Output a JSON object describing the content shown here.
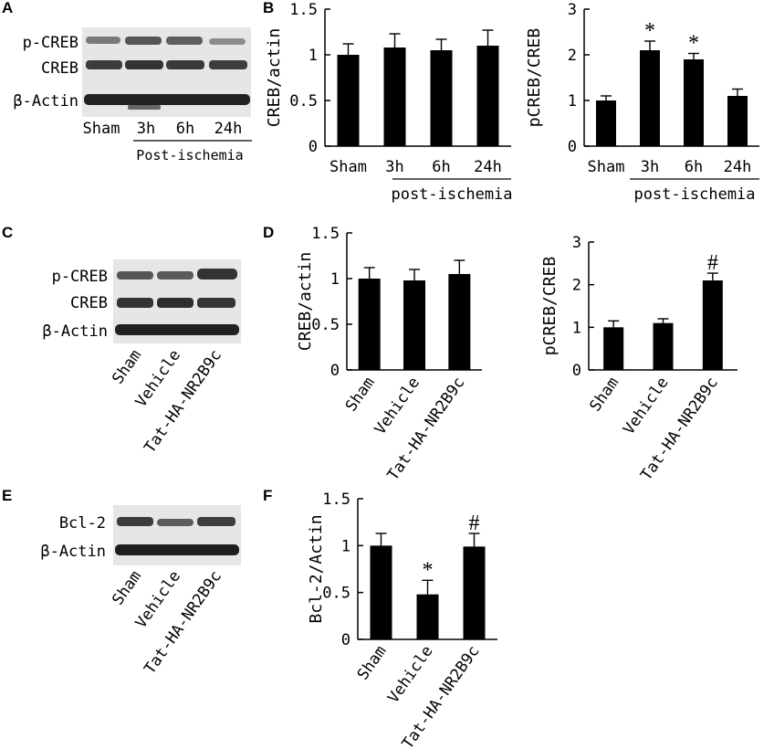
{
  "panels": [
    {
      "id": "A",
      "label": "A"
    },
    {
      "id": "B",
      "label": "B"
    },
    {
      "id": "C",
      "label": "C"
    },
    {
      "id": "D",
      "label": "D"
    },
    {
      "id": "E",
      "label": "E"
    },
    {
      "id": "F",
      "label": "F"
    }
  ],
  "blots": [
    {
      "panel": "A",
      "rows": [
        "p-CREB",
        "CREB",
        "β-Actin"
      ],
      "lanes": [
        "Sham",
        "3h",
        "6h",
        "24h"
      ],
      "group_label": "Post-ischemia"
    },
    {
      "panel": "C",
      "rows": [
        "p-CREB",
        "CREB",
        "β-Actin"
      ],
      "lanes": [
        "Sham",
        "Vehicle",
        "Tat-HA-NR2B9c"
      ]
    },
    {
      "panel": "E",
      "rows": [
        "Bcl-2",
        "β-Actin"
      ],
      "lanes": [
        "Sham",
        "Vehicle",
        "Tat-HA-NR2B9c"
      ]
    }
  ],
  "chart_data": [
    {
      "panel": "B",
      "type": "bar",
      "ylabel": "CREB/actin",
      "ylim": [
        0,
        1.5
      ],
      "yticks": [
        "0",
        "0.5",
        "1",
        "1.5"
      ],
      "categories": [
        "Sham",
        "3h",
        "6h",
        "24h"
      ],
      "group_label": "post-ischemia",
      "values": [
        1.0,
        1.08,
        1.05,
        1.1
      ],
      "errors": [
        0.12,
        0.15,
        0.12,
        0.17
      ],
      "annotations": [
        "",
        "",
        "",
        ""
      ]
    },
    {
      "panel": "B2",
      "type": "bar",
      "ylabel": "pCREB/CREB",
      "ylim": [
        0,
        3
      ],
      "yticks": [
        "0",
        "1",
        "2",
        "3"
      ],
      "categories": [
        "Sham",
        "3h",
        "6h",
        "24h"
      ],
      "group_label": "post-ischemia",
      "values": [
        1.0,
        2.1,
        1.9,
        1.1
      ],
      "errors": [
        0.1,
        0.2,
        0.13,
        0.15
      ],
      "annotations": [
        "",
        "*",
        "*",
        ""
      ]
    },
    {
      "panel": "D",
      "type": "bar",
      "ylabel": "CREB/actin",
      "ylim": [
        0,
        1.5
      ],
      "yticks": [
        "0",
        "0.5",
        "1",
        "1.5"
      ],
      "categories": [
        "Sham",
        "Vehicle",
        "Tat-HA-NR2B9c"
      ],
      "values": [
        1.0,
        0.98,
        1.05
      ],
      "errors": [
        0.12,
        0.12,
        0.15
      ],
      "annotations": [
        "",
        "",
        ""
      ]
    },
    {
      "panel": "D2",
      "type": "bar",
      "ylabel": "pCREB/CREB",
      "ylim": [
        0,
        3
      ],
      "yticks": [
        "0",
        "1",
        "2",
        "3"
      ],
      "categories": [
        "Sham",
        "Vehicle",
        "Tat-HA-NR2B9c"
      ],
      "values": [
        1.0,
        1.1,
        2.1
      ],
      "errors": [
        0.15,
        0.1,
        0.17
      ],
      "annotations": [
        "",
        "",
        "#"
      ]
    },
    {
      "panel": "F",
      "type": "bar",
      "ylabel": "Bcl-2/Actin",
      "ylim": [
        0,
        1.5
      ],
      "yticks": [
        "0",
        "0.5",
        "1",
        "1.5"
      ],
      "categories": [
        "Sham",
        "Vehicle",
        "Tat-HA-NR2B9c"
      ],
      "values": [
        1.0,
        0.48,
        0.99
      ],
      "errors": [
        0.13,
        0.15,
        0.14
      ],
      "annotations": [
        "",
        "*",
        "#"
      ]
    }
  ]
}
